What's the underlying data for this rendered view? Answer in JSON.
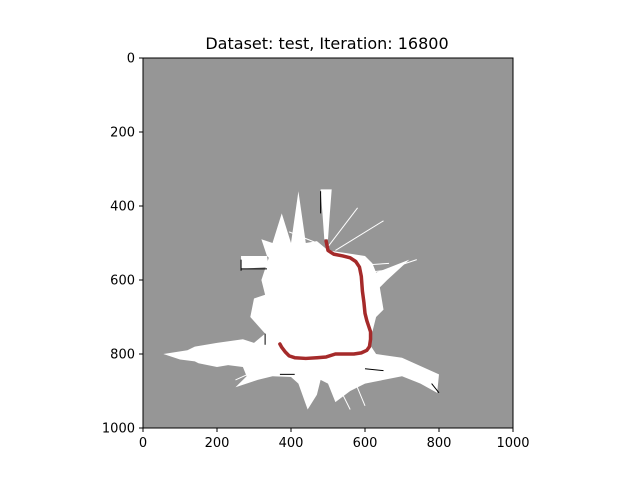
{
  "chart_data": {
    "type": "heatmap",
    "title": "Dataset: test, Iteration: 16800",
    "xlabel": "",
    "ylabel": "",
    "xlim": [
      0,
      1000
    ],
    "ylim": [
      1000,
      0
    ],
    "xticks": [
      0,
      200,
      400,
      600,
      800,
      1000
    ],
    "yticks": [
      0,
      200,
      400,
      600,
      800,
      1000
    ],
    "grid": false,
    "colors": {
      "unknown": "#969696",
      "free": "#ffffff",
      "occupied": "#000000",
      "trajectory": "#a52a2a"
    },
    "free_regions": [
      [
        [
          480,
          355
        ],
        [
          510,
          355
        ],
        [
          505,
          420
        ],
        [
          500,
          490
        ],
        [
          490,
          490
        ],
        [
          485,
          420
        ]
      ],
      [
        [
          335,
          535
        ],
        [
          320,
          490
        ],
        [
          350,
          500
        ],
        [
          375,
          420
        ],
        [
          400,
          500
        ],
        [
          420,
          360
        ],
        [
          440,
          500
        ],
        [
          470,
          495
        ],
        [
          500,
          520
        ],
        [
          600,
          535
        ],
        [
          620,
          555
        ],
        [
          630,
          580
        ],
        [
          720,
          545
        ],
        [
          660,
          600
        ],
        [
          640,
          620
        ],
        [
          650,
          680
        ],
        [
          630,
          700
        ],
        [
          620,
          740
        ],
        [
          610,
          770
        ],
        [
          630,
          800
        ],
        [
          700,
          810
        ],
        [
          800,
          855
        ],
        [
          795,
          905
        ],
        [
          750,
          880
        ],
        [
          700,
          860
        ],
        [
          650,
          870
        ],
        [
          600,
          880
        ],
        [
          560,
          900
        ],
        [
          520,
          930
        ],
        [
          500,
          880
        ],
        [
          480,
          870
        ],
        [
          470,
          910
        ],
        [
          445,
          950
        ],
        [
          420,
          880
        ],
        [
          400,
          862
        ],
        [
          350,
          860
        ],
        [
          310,
          870
        ],
        [
          250,
          890
        ],
        [
          280,
          860
        ],
        [
          270,
          835
        ],
        [
          230,
          830
        ],
        [
          200,
          835
        ],
        [
          150,
          825
        ],
        [
          140,
          820
        ],
        [
          100,
          815
        ],
        [
          55,
          800
        ],
        [
          120,
          790
        ],
        [
          140,
          780
        ],
        [
          200,
          770
        ],
        [
          270,
          760
        ],
        [
          300,
          770
        ],
        [
          330,
          745
        ],
        [
          290,
          700
        ],
        [
          300,
          650
        ],
        [
          330,
          640
        ],
        [
          320,
          600
        ],
        [
          340,
          540
        ]
      ],
      [
        [
          265,
          535
        ],
        [
          335,
          535
        ],
        [
          340,
          565
        ],
        [
          265,
          570
        ]
      ]
    ],
    "free_rays": [
      [
        [
          470,
          500
        ],
        [
          395,
          470
        ]
      ],
      [
        [
          500,
          510
        ],
        [
          580,
          405
        ]
      ],
      [
        [
          520,
          520
        ],
        [
          650,
          440
        ]
      ],
      [
        [
          590,
          560
        ],
        [
          665,
          555
        ]
      ],
      [
        [
          600,
          580
        ],
        [
          690,
          570
        ]
      ],
      [
        [
          605,
          590
        ],
        [
          740,
          545
        ]
      ],
      [
        [
          600,
          600
        ],
        [
          640,
          620
        ]
      ],
      [
        [
          600,
          640
        ],
        [
          545,
          635
        ]
      ],
      [
        [
          550,
          820
        ],
        [
          600,
          940
        ]
      ],
      [
        [
          460,
          830
        ],
        [
          440,
          920
        ]
      ],
      [
        [
          360,
          820
        ],
        [
          250,
          870
        ]
      ],
      [
        [
          500,
          830
        ],
        [
          560,
          950
        ]
      ],
      [
        [
          700,
          820
        ],
        [
          790,
          890
        ]
      ]
    ],
    "obstacle_lines": [
      [
        [
          265,
          545
        ],
        [
          265,
          575
        ]
      ],
      [
        [
          265,
          570
        ],
        [
          335,
          570
        ]
      ],
      [
        [
          480,
          360
        ],
        [
          480,
          420
        ]
      ],
      [
        [
          600,
          840
        ],
        [
          650,
          845
        ]
      ],
      [
        [
          370,
          855
        ],
        [
          410,
          855
        ]
      ],
      [
        [
          780,
          880
        ],
        [
          800,
          905
        ]
      ],
      [
        [
          330,
          745
        ],
        [
          330,
          775
        ]
      ]
    ],
    "trajectory": {
      "x": [
        495,
        500,
        515,
        540,
        560,
        575,
        585,
        590,
        593,
        597,
        600,
        605,
        610,
        615,
        615,
        612,
        605,
        590,
        570,
        545,
        520,
        495,
        470,
        440,
        410,
        395,
        385,
        375,
        370
      ],
      "y": [
        495,
        520,
        530,
        535,
        540,
        550,
        565,
        590,
        630,
        660,
        690,
        710,
        725,
        740,
        760,
        780,
        790,
        797,
        800,
        800,
        800,
        808,
        810,
        812,
        810,
        805,
        795,
        782,
        773
      ]
    }
  }
}
